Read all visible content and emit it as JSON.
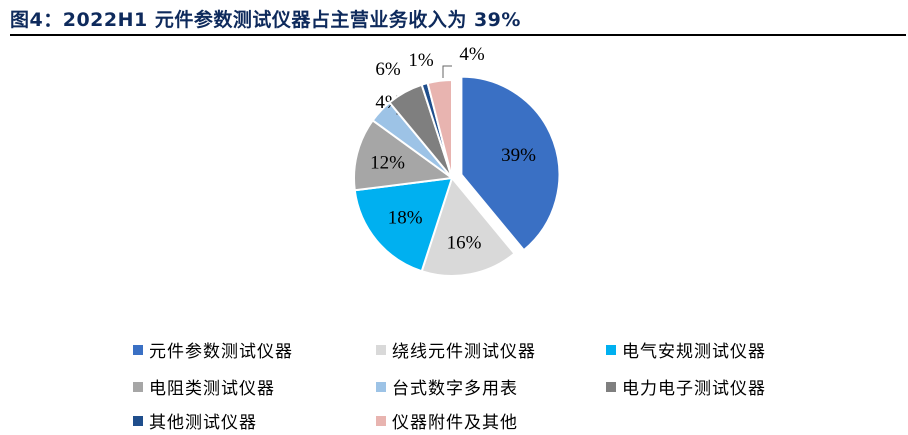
{
  "figure": {
    "title": "图4：2022H1 元件参数测试仪器占主营业务收入为 39%"
  },
  "chart_data": {
    "type": "pie",
    "title": "图4：2022H1 元件参数测试仪器占主营业务收入为 39%",
    "legend_position": "bottom",
    "slices": [
      {
        "name": "元件参数测试仪器",
        "value": 39,
        "label": "39%",
        "color": "#3a70c4",
        "exploded": true
      },
      {
        "name": "绕线元件测试仪器",
        "value": 16,
        "label": "16%",
        "color": "#d9d9d9"
      },
      {
        "name": "电气安规测试仪器",
        "value": 18,
        "label": "18%",
        "color": "#00b0f0"
      },
      {
        "name": "电阻类测试仪器",
        "value": 12,
        "label": "12%",
        "color": "#a6a6a6"
      },
      {
        "name": "台式数字多用表",
        "value": 4,
        "label": "4%",
        "color": "#9dc3e6"
      },
      {
        "name": "电力电子测试仪器",
        "value": 6,
        "label": "6%",
        "color": "#7f7f7f"
      },
      {
        "name": "其他测试仪器",
        "value": 1,
        "label": "1%",
        "color": "#1f4e8c"
      },
      {
        "name": "仪器附件及其他",
        "value": 4,
        "label": "4%",
        "color": "#e8b4b0"
      }
    ]
  }
}
